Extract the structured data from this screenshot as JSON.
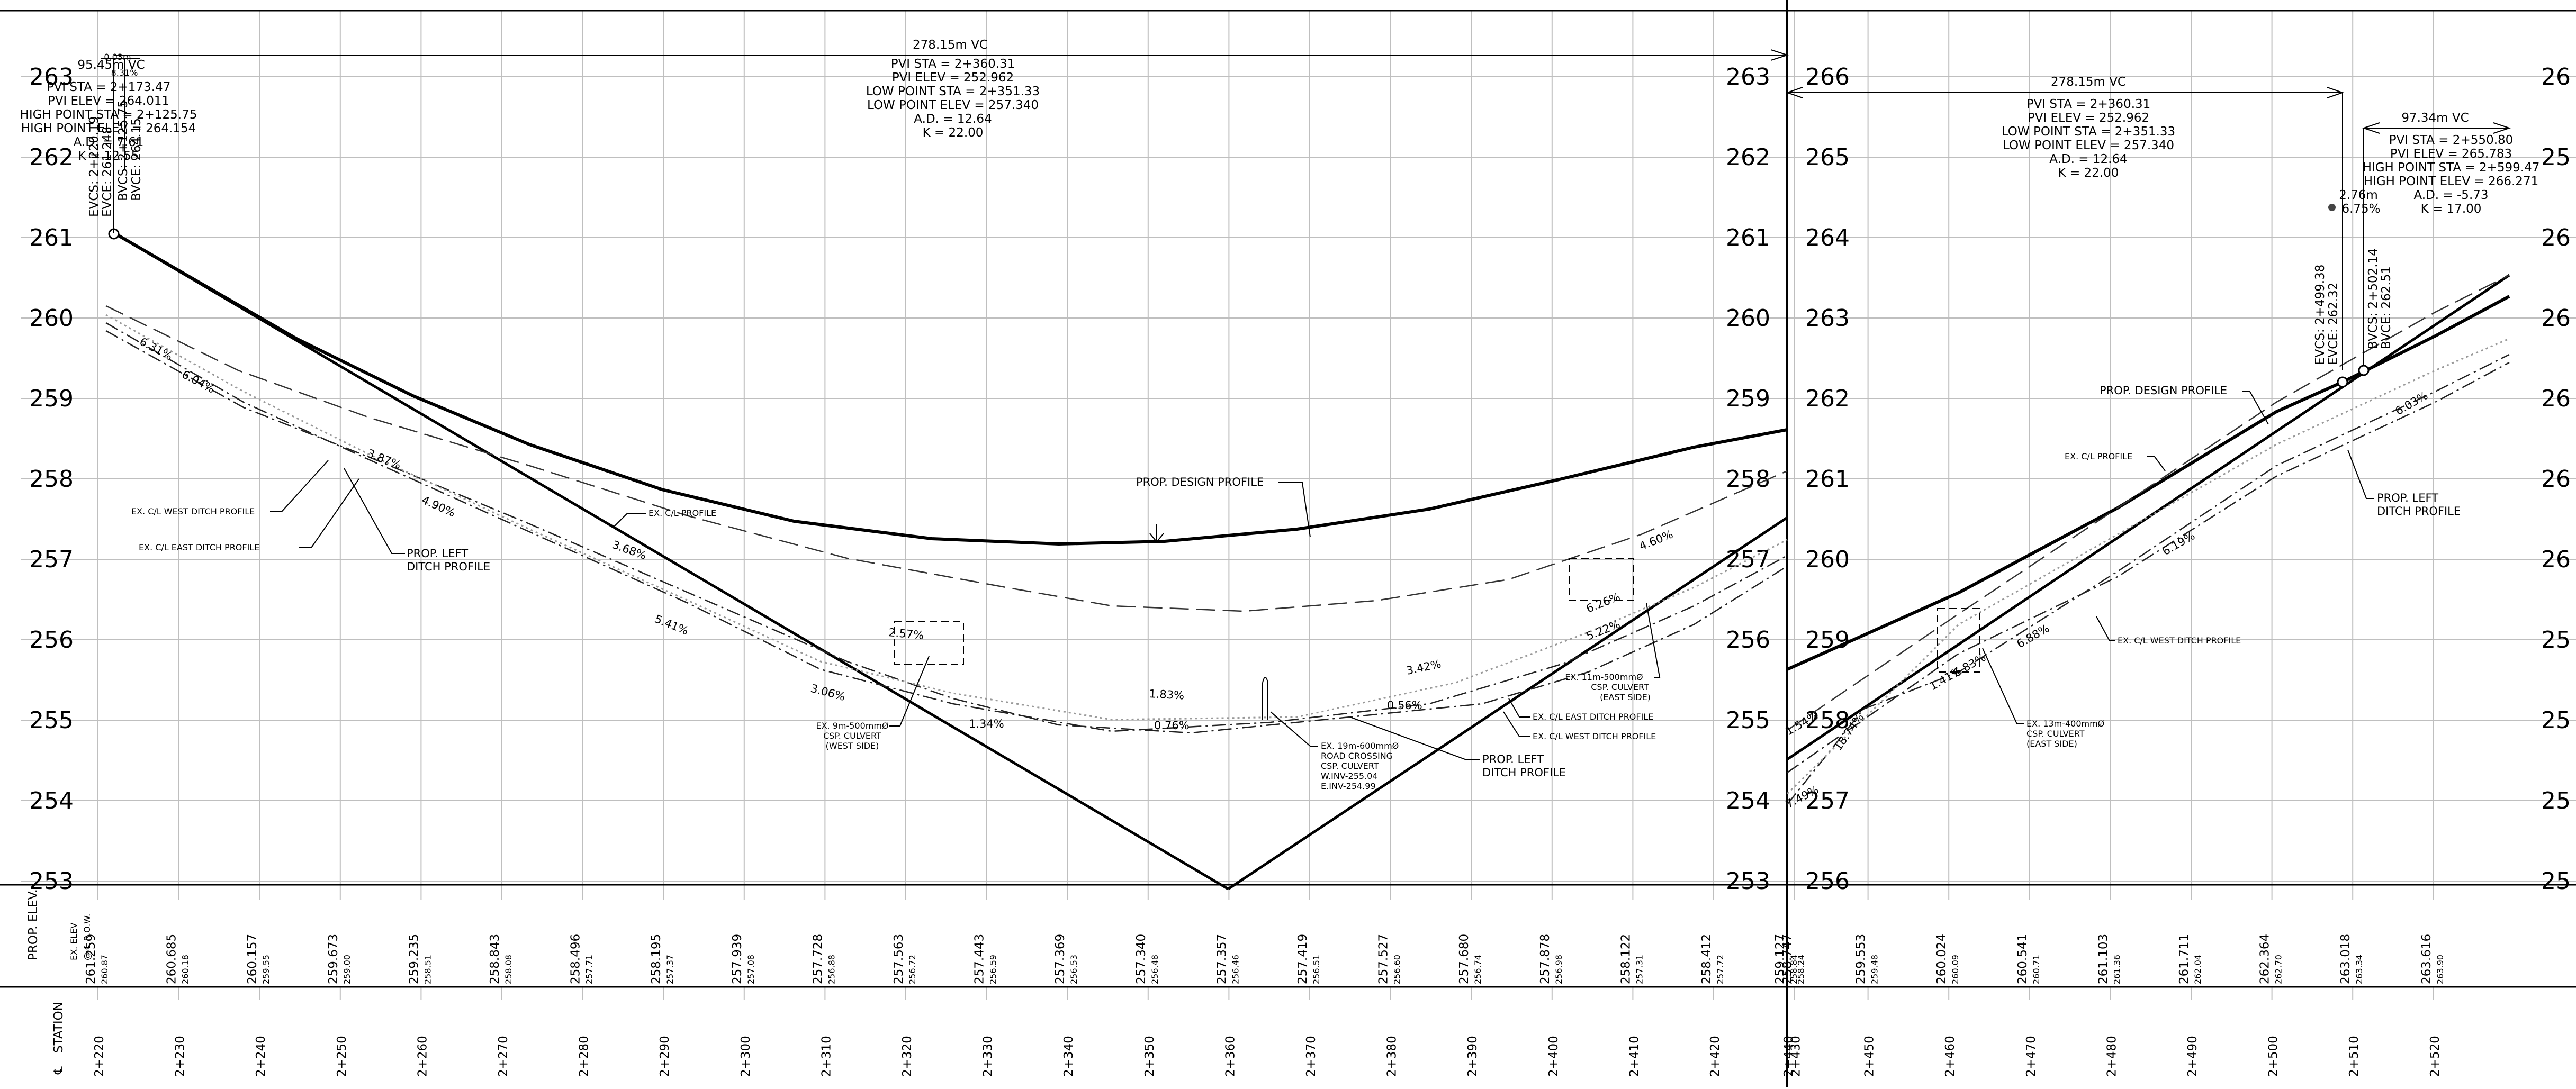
{
  "panels": [
    {
      "id": "left",
      "elev_labels": [
        "263",
        "262",
        "261",
        "260",
        "259",
        "258",
        "257",
        "256",
        "255",
        "254",
        "253"
      ],
      "stations": [
        "2+220",
        "2+230",
        "2+240",
        "2+250",
        "2+260",
        "2+270",
        "2+280",
        "2+290",
        "2+300",
        "2+310",
        "2+320",
        "2+330",
        "2+340",
        "2+350",
        "2+360",
        "2+370",
        "2+380",
        "2+390",
        "2+400",
        "2+410",
        "2+420",
        "2+430"
      ],
      "prop_elev": [
        "261.259",
        "260.685",
        "260.157",
        "259.673",
        "259.235",
        "258.843",
        "258.496",
        "258.195",
        "257.939",
        "257.728",
        "257.563",
        "257.443",
        "257.369",
        "257.340",
        "257.357",
        "257.419",
        "257.527",
        "257.680",
        "257.878",
        "258.122",
        "258.412",
        "258.747"
      ],
      "ex_elev": [
        "260.87",
        "260.18",
        "259.55",
        "259.00",
        "258.51",
        "258.08",
        "257.71",
        "257.37",
        "257.08",
        "256.88",
        "256.72",
        "256.59",
        "256.53",
        "256.48",
        "256.46",
        "256.51",
        "256.60",
        "256.74",
        "256.98",
        "257.31",
        "257.72",
        "258.24"
      ]
    },
    {
      "id": "right",
      "elev_labels": [
        "266",
        "265",
        "264",
        "263",
        "262",
        "261",
        "260",
        "259",
        "258",
        "257",
        "256"
      ],
      "stations": [
        "2+440",
        "2+450",
        "2+460",
        "2+470",
        "2+480",
        "2+490",
        "2+500",
        "2+510",
        "2+520"
      ],
      "prop_elev": [
        "259.127",
        "259.553",
        "260.024",
        "260.541",
        "261.103",
        "261.711",
        "262.364",
        "263.018",
        "263.616"
      ],
      "ex_elev": [
        "258.84",
        "259.48",
        "260.09",
        "260.71",
        "261.36",
        "262.04",
        "262.70",
        "263.34",
        "263.90"
      ]
    }
  ],
  "right_edge_elevs": [
    "26",
    "25",
    "26",
    "26",
    "26",
    "26",
    "26",
    "25",
    "25",
    "25",
    "25"
  ],
  "row_labels": {
    "prop_elev": "PROP. ELEV.",
    "ex_elev": "EX. ELEV",
    "row_loc": "@ ℄ R.O.W.",
    "station": "STATION",
    "station_symbol": "℄"
  },
  "curve_main": {
    "vc": "278.15m VC",
    "lines": [
      "PVI STA = 2+360.31",
      "PVI ELEV = 252.962",
      "LOW POINT STA = 2+351.33",
      "LOW POINT ELEV = 257.340",
      "A.D. = 12.64",
      "K = 22.00"
    ]
  },
  "curve_main_right": {
    "vc": "278.15m VC",
    "lines": [
      "PVI STA = 2+360.31",
      "PVI ELEV = 252.962",
      "LOW POINT STA = 2+351.33",
      "LOW POINT ELEV = 257.340",
      "A.D. = 12.64",
      "K = 22.00"
    ]
  },
  "curve_left_top": {
    "vc": "95.45m VC",
    "lines": [
      "PVI STA = 2+173.47",
      "PVI ELEV = 264.011",
      "HIGH POINT STA = 2+125.75",
      "HIGH POINT ELEV = 264.154",
      "A.D. = 7.61",
      "K = 12.55"
    ],
    "small": [
      "0.03m",
      "8.31%"
    ],
    "vertical": [
      "EVCS: 2+220.19",
      "EVCE: 261.248",
      "BVCS: 2+125.75",
      "BVCE: 264.15"
    ]
  },
  "curve_right_top": {
    "vc": "97.34m VC",
    "lines": [
      "PVI STA = 2+550.80",
      "PVI ELEV = 265.783",
      "HIGH POINT STA = 2+599.47",
      "HIGH POINT ELEV = 266.271",
      "A.D. = -5.73",
      "K = 17.00"
    ],
    "small": [
      "2.76m",
      "6.75%"
    ],
    "vertical": [
      "EVCS: 2+499.38",
      "EVCE: 262.32",
      "BVCS: 2+502.14",
      "BVCE: 262.51"
    ]
  },
  "grades": [
    "6.31%",
    "6.04%",
    "3.87%",
    "4.90%",
    "3.68%",
    "5.41%",
    "3.06%",
    "1.34%",
    "2.57%",
    "1.83%",
    "0.76%",
    "0.56%",
    "3.42%",
    "6.26%",
    "5.22%",
    "4.60%",
    "7.49%",
    "18.74%",
    "1.54%",
    "1.41%",
    "6.83%",
    "6.88%",
    "6.19%",
    "6.03%"
  ],
  "annotations": {
    "prop_design_profile": "PROP. DESIGN PROFILE",
    "ex_cl_profile": "EX. C/L PROFILE",
    "ex_cl_west_ditch": "EX. C/L WEST DITCH PROFILE",
    "ex_cl_east_ditch": "EX. C/L EAST DITCH PROFILE",
    "prop_left_ditch": [
      "PROP. LEFT",
      "DITCH PROFILE"
    ],
    "culvert_west": [
      "EX. 9m-500mmØ",
      "CSP. CULVERT",
      "(WEST SIDE)"
    ],
    "culvert_road": [
      "EX. 19m-600mmØ",
      "ROAD CROSSING",
      "CSP. CULVERT",
      "W.INV-255.04",
      "E.INV-254.99"
    ],
    "culvert_east": [
      "EX. 11m-500mmØ",
      "CSP. CULVERT",
      "(EAST SIDE)"
    ],
    "culvert_east2": [
      "EX. 13m-400mmØ",
      "CSP. CULVERT",
      "(EAST SIDE)"
    ],
    "ex_cl_east_ditch_r": "EX. C/L EAST DITCH PROFILE",
    "ex_cl_west_ditch_r": "EX. C/L WEST DITCH PROFILE",
    "prop_design_profile_r": "PROP. DESIGN PROFILE",
    "ex_cl_profile_r": "EX. C/L PROFILE",
    "prop_left_ditch_r": [
      "PROP. LEFT",
      "DITCH PROFILE"
    ],
    "ex_cl_west_ditch_r2": "EX. C/L WEST DITCH PROFILE"
  }
}
